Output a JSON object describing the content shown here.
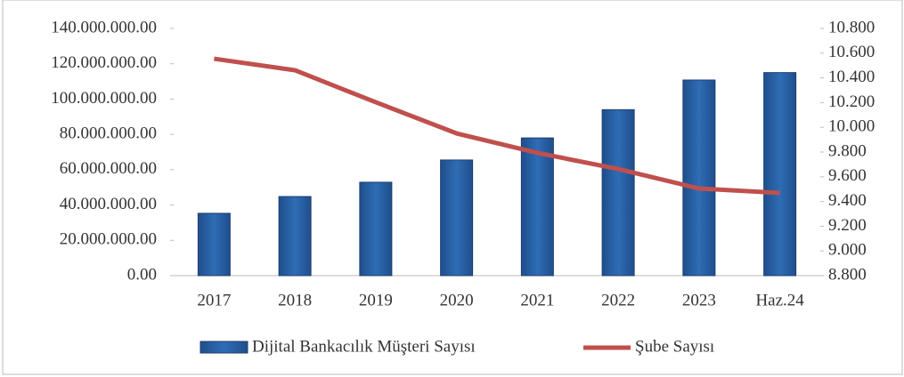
{
  "chart_data": {
    "type": "bar",
    "categories": [
      "2017",
      "2018",
      "2019",
      "2020",
      "2021",
      "2022",
      "2023",
      "Haz.24"
    ],
    "series": [
      {
        "name": "Dijital Bankacılık Müşteri Sayısı",
        "type": "bar",
        "color": "#2e6db5",
        "values": [
          35300000,
          44800000,
          52900000,
          65500000,
          78000000,
          94000000,
          110800000,
          115000000
        ]
      },
      {
        "name": "Şube Sayısı",
        "type": "line",
        "color": "#c0504d",
        "axis": "y2",
        "values": [
          10555,
          10462,
          10203,
          9951,
          9793,
          9663,
          9505,
          9469
        ]
      }
    ],
    "ylim": [
      0,
      140000000
    ],
    "yticks": [
      {
        "value": 0,
        "label": "0.00"
      },
      {
        "value": 20000000,
        "label": "20.000.000.00"
      },
      {
        "value": 40000000,
        "label": "40.000.000.00"
      },
      {
        "value": 60000000,
        "label": "60.000.000.00"
      },
      {
        "value": 80000000,
        "label": "80.000.000.00"
      },
      {
        "value": 100000000,
        "label": "100.000.000.00"
      },
      {
        "value": 120000000,
        "label": "120.000.000.00"
      },
      {
        "value": 140000000,
        "label": "140.000.000.00"
      }
    ],
    "y2lim": [
      8800,
      10800
    ],
    "y2ticks": [
      {
        "value": 8800,
        "label": "8.800"
      },
      {
        "value": 9000,
        "label": "9.000"
      },
      {
        "value": 9200,
        "label": "9.200"
      },
      {
        "value": 9400,
        "label": "9.400"
      },
      {
        "value": 9600,
        "label": "9.600"
      },
      {
        "value": 9800,
        "label": "9.800"
      },
      {
        "value": 10000,
        "label": "10.000"
      },
      {
        "value": 10200,
        "label": "10.200"
      },
      {
        "value": 10400,
        "label": "10.400"
      },
      {
        "value": 10600,
        "label": "10.600"
      },
      {
        "value": 10800,
        "label": "10.800"
      }
    ],
    "grid": false,
    "legend": "bottom"
  }
}
